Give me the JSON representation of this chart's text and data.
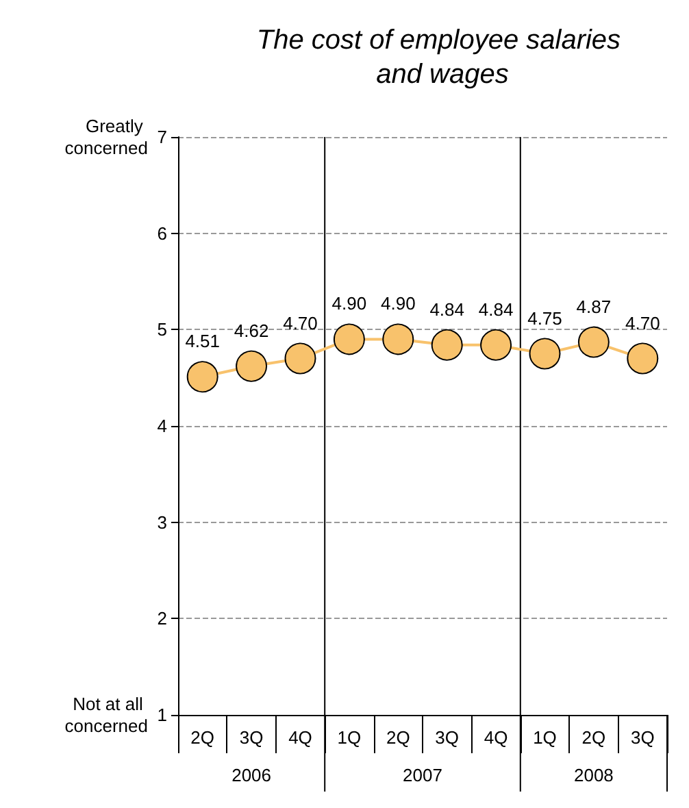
{
  "chart_data": {
    "type": "line",
    "title": "The cost of employee salaries and wages",
    "categories": [
      "2Q",
      "3Q",
      "4Q",
      "1Q",
      "2Q",
      "3Q",
      "4Q",
      "1Q",
      "2Q",
      "3Q"
    ],
    "series": [
      {
        "color": "#f8c26c",
        "values": [
          4.51,
          4.62,
          4.7,
          4.9,
          4.9,
          4.84,
          4.84,
          4.75,
          4.87,
          4.7
        ],
        "value_labels": [
          "4.51",
          "4.62",
          "4.70",
          "4.90",
          "4.90",
          "4.84",
          "4.84",
          "4.75",
          "4.87",
          "4.70"
        ]
      }
    ],
    "ylim": [
      1,
      7
    ],
    "yticks": [
      1,
      2,
      3,
      4,
      5,
      6,
      7
    ],
    "grid": "y",
    "marker": "circle",
    "line_style": "solid",
    "annotations": [
      "Greatly concerned",
      "Not at all concerned",
      "2006",
      "2007",
      "2008"
    ]
  }
}
